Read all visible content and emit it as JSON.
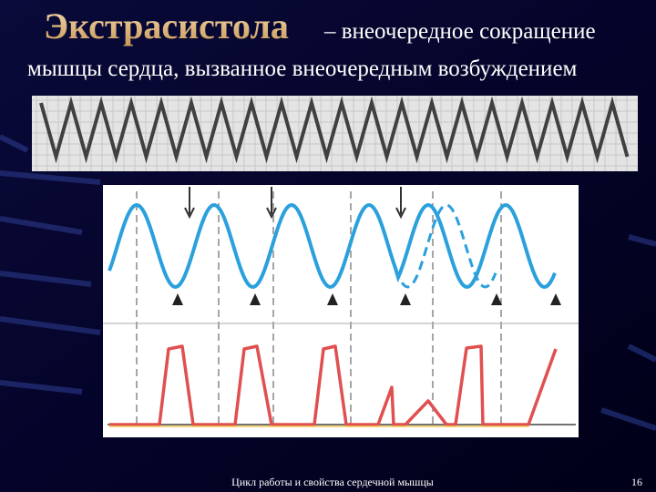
{
  "title": {
    "term": "Экстрасистола",
    "definition": "– внеочередное сокращение",
    "definition_cont": "мышцы сердца, вызванное внеочередным возбуждением"
  },
  "footer": {
    "caption": "Цикл работы и свойства сердечной мышцы",
    "page": "16"
  }
}
